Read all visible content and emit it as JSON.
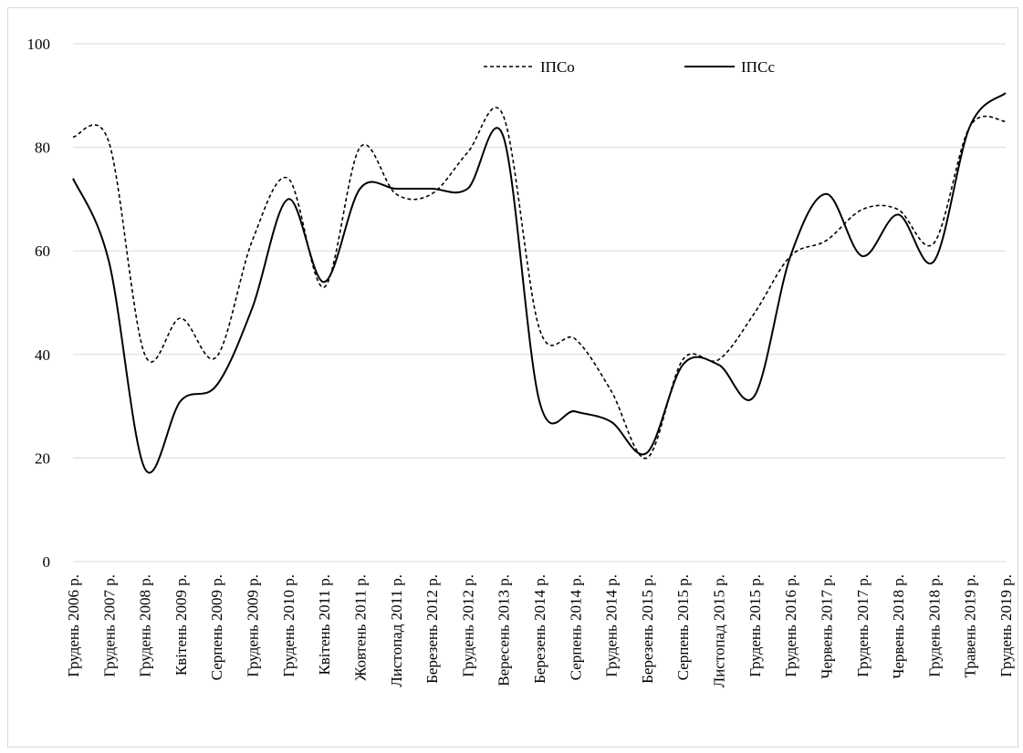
{
  "chart_data": {
    "type": "line",
    "title": "",
    "xlabel": "",
    "ylabel": "",
    "ylim": [
      0,
      100
    ],
    "yticks": [
      "0",
      "20",
      "40",
      "60",
      "80",
      "100"
    ],
    "grid": "horizontal",
    "legend_position": "top-right",
    "categories": [
      "Грудень 2006 р.",
      "Грудень 2007 р.",
      "Грудень 2008 р.",
      "Квітень 2009 р.",
      "Серпень 2009 р.",
      "Грудень 2009 р.",
      "Грудень 2010 р.",
      "Квітень 2011 р.",
      "Жовтень 2011 р.",
      "Листопад 2011 р.",
      "Березень 2012 р.",
      "Грудень 2012 р.",
      "Вересень 2013 р.",
      "Березень 2014 р.",
      "Серпень 2014 р.",
      "Грудень 2014 р.",
      "Березень 2015 р.",
      "Серпень 2015 р.",
      "Листопад 2015 р.",
      "Грудень 2015 р.",
      "Грудень 2016 р.",
      "Червень 2017 р.",
      "Грудень 2017 р.",
      "Червень 2018 р.",
      "Грудень 2018 р.",
      "Травень 2019 р.",
      "Грудень 2019 р."
    ],
    "series": [
      {
        "name": "ІПСо",
        "style": "dashed",
        "color": "#000000",
        "values": [
          82,
          81,
          40,
          47,
          39.5,
          62,
          74,
          53,
          80,
          71,
          71,
          79,
          86,
          45,
          43,
          33,
          20,
          39,
          39,
          48,
          59,
          62,
          68,
          68,
          61.5,
          84,
          85
        ]
      },
      {
        "name": "ІПСс",
        "style": "solid",
        "color": "#000000",
        "values": [
          74,
          58,
          18,
          31,
          34,
          49,
          70,
          54,
          72,
          72,
          72,
          72,
          82,
          31,
          29,
          27,
          21,
          38,
          38,
          32,
          59,
          71,
          59,
          67,
          58,
          84,
          90.5
        ]
      }
    ]
  }
}
